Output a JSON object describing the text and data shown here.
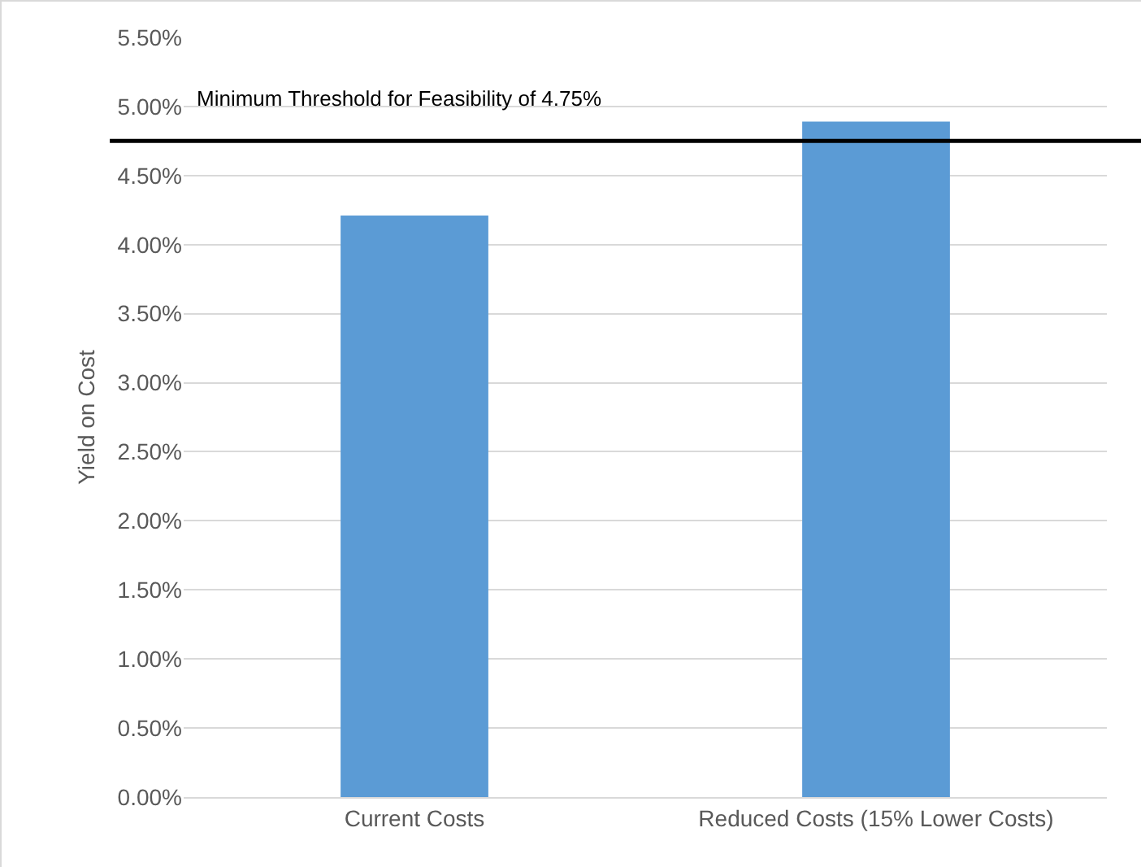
{
  "chart_data": {
    "type": "bar",
    "ylabel": "Yield on Cost",
    "categories": [
      "Current Costs",
      "Reduced Costs (15% Lower Costs)"
    ],
    "values": [
      4.21,
      4.89
    ],
    "color": "#5b9bd5",
    "ylim": [
      0,
      5.5
    ],
    "yticks": [
      {
        "value": 0,
        "label": "0.00%"
      },
      {
        "value": 0.5,
        "label": "0.50%"
      },
      {
        "value": 1,
        "label": "1.00%"
      },
      {
        "value": 1.5,
        "label": "1.50%"
      },
      {
        "value": 2,
        "label": "2.00%"
      },
      {
        "value": 2.5,
        "label": "2.50%"
      },
      {
        "value": 3,
        "label": "3.00%"
      },
      {
        "value": 3.5,
        "label": "3.50%"
      },
      {
        "value": 4,
        "label": "4.00%"
      },
      {
        "value": 4.5,
        "label": "4.50%"
      },
      {
        "value": 5,
        "label": "5.00%"
      },
      {
        "value": 5.5,
        "label": "5.50%"
      }
    ],
    "grid": "y",
    "ref_lines": [
      {
        "axis": "y",
        "value": 4.75,
        "label": "Minimum Threshold for Feasibility of 4.75%",
        "color": "#000000",
        "line_style": "solid"
      }
    ]
  }
}
